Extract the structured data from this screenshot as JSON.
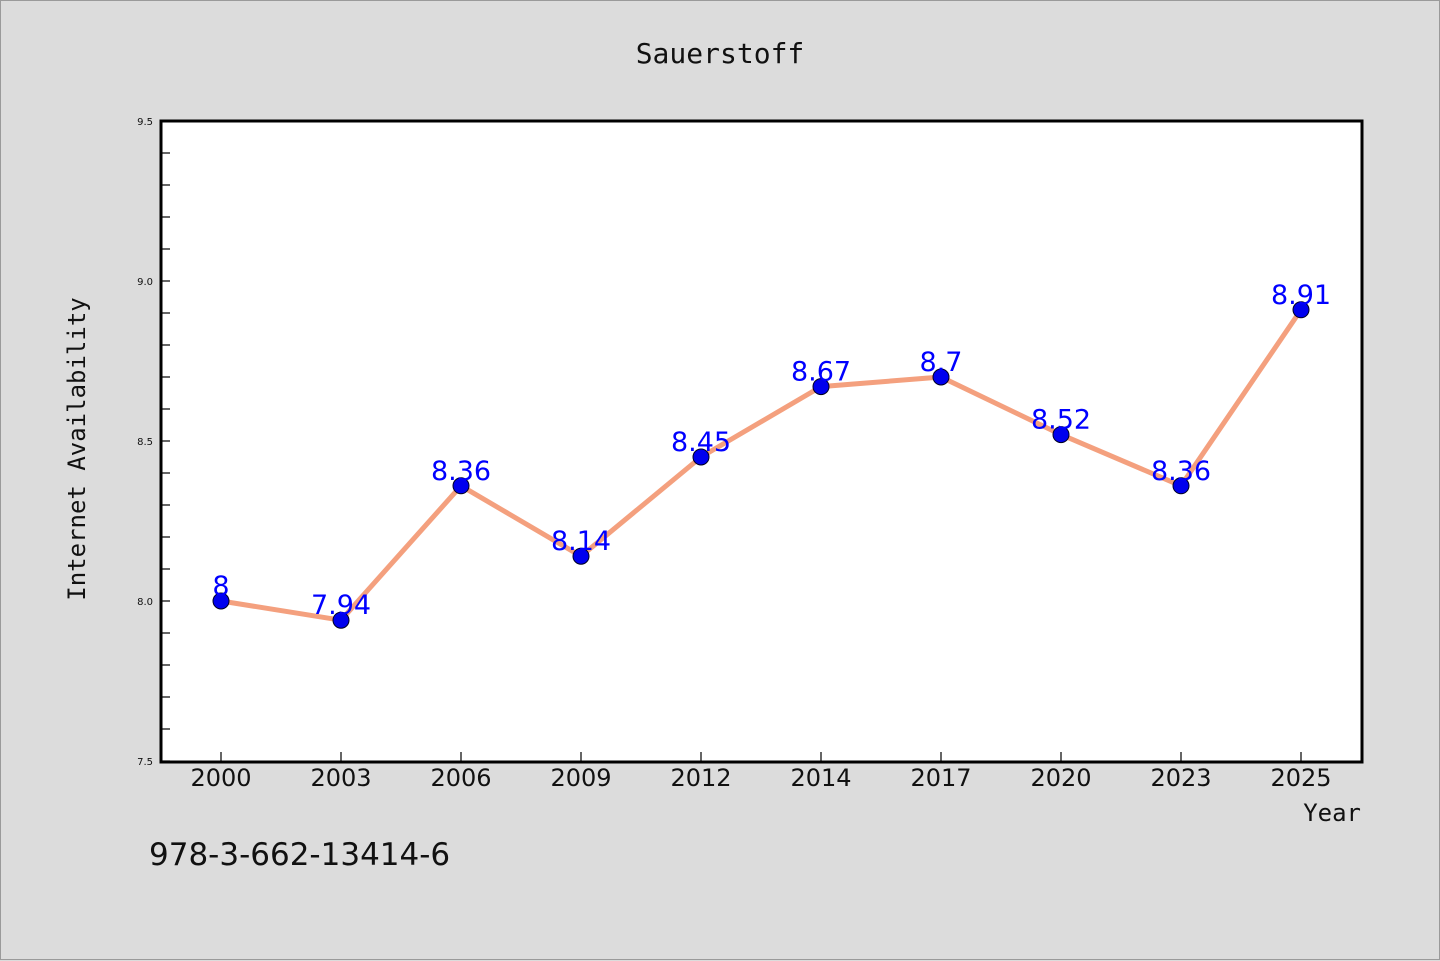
{
  "colors": {
    "background": "#dcdcdc",
    "plot_background": "#ffffff",
    "line": "#f4a07e",
    "marker": "#0000ee",
    "data_label": "#0000ff",
    "axis": "#000000"
  },
  "footer_text": "978-3-662-13414-6",
  "chart_data": {
    "type": "line",
    "title": "Sauerstoff",
    "xlabel": "Year",
    "ylabel": "Internet Availability",
    "categories": [
      "2000",
      "2003",
      "2006",
      "2009",
      "2012",
      "2014",
      "2017",
      "2020",
      "2023",
      "2025"
    ],
    "series": [
      {
        "values": [
          8,
          7.94,
          8.36,
          8.14,
          8.45,
          8.67,
          8.7,
          8.52,
          8.36,
          8.91
        ],
        "labels": [
          "8",
          "7.94",
          "8.36",
          "8.14",
          "8.45",
          "8.67",
          "8.7",
          "8.52",
          "8.36",
          "8.91"
        ]
      }
    ],
    "ylim": [
      7.5,
      9.5
    ],
    "y_ticks": [
      "7.5",
      "8.0",
      "8.5",
      "9.0",
      "9.5"
    ],
    "y_minor_step": 0.1,
    "grid": false,
    "legend": "none"
  }
}
